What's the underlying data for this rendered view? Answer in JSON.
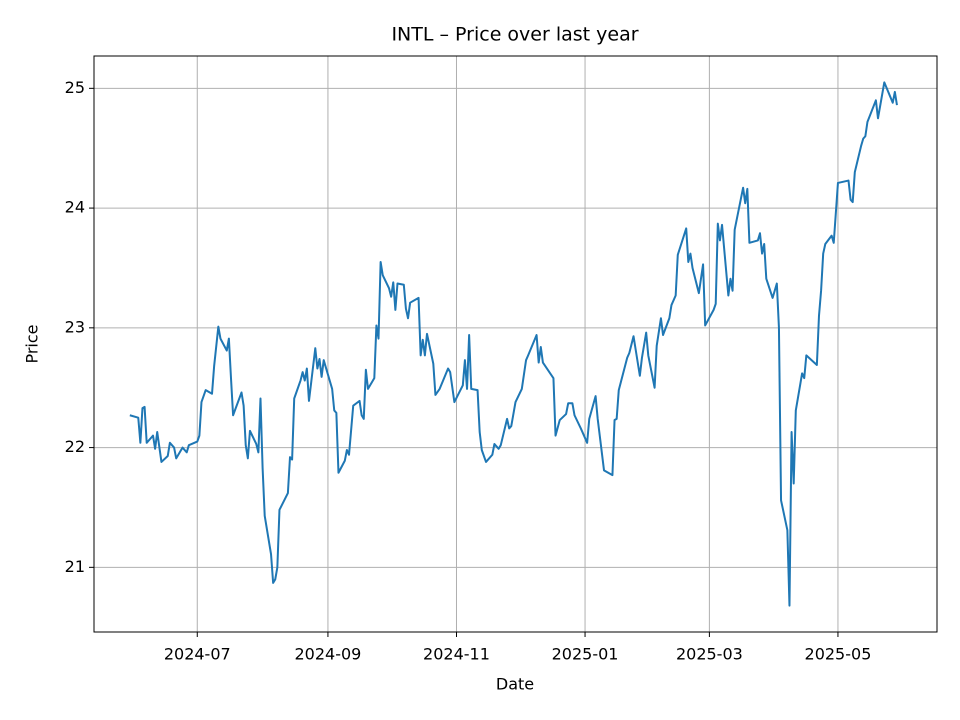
{
  "chart_data": {
    "type": "line",
    "title": "INTL – Price over last year",
    "x_label": "Date",
    "y_label": "Price",
    "color": "#1f77b4",
    "grid": true,
    "xlim": [
      "2024-05-13",
      "2025-06-17"
    ],
    "ylim": [
      20.46,
      25.27
    ],
    "xticks": [
      {
        "value": "2024-07-01",
        "label": "2024-07"
      },
      {
        "value": "2024-09-01",
        "label": "2024-09"
      },
      {
        "value": "2024-11-01",
        "label": "2024-11"
      },
      {
        "value": "2025-01-01",
        "label": "2025-01"
      },
      {
        "value": "2025-03-01",
        "label": "2025-03"
      },
      {
        "value": "2025-05-01",
        "label": "2025-05"
      }
    ],
    "yticks": [
      21,
      22,
      23,
      24,
      25
    ],
    "x": [
      "2024-05-30",
      "2024-06-03",
      "2024-06-04",
      "2024-06-05",
      "2024-06-06",
      "2024-06-07",
      "2024-06-10",
      "2024-06-11",
      "2024-06-12",
      "2024-06-14",
      "2024-06-17",
      "2024-06-18",
      "2024-06-20",
      "2024-06-21",
      "2024-06-24",
      "2024-06-26",
      "2024-06-27",
      "2024-07-01",
      "2024-07-02",
      "2024-07-03",
      "2024-07-05",
      "2024-07-08",
      "2024-07-09",
      "2024-07-11",
      "2024-07-12",
      "2024-07-15",
      "2024-07-16",
      "2024-07-17",
      "2024-07-18",
      "2024-07-22",
      "2024-07-23",
      "2024-07-24",
      "2024-07-25",
      "2024-07-26",
      "2024-07-29",
      "2024-07-30",
      "2024-07-31",
      "2024-08-01",
      "2024-08-02",
      "2024-08-05",
      "2024-08-06",
      "2024-08-07",
      "2024-08-08",
      "2024-08-09",
      "2024-08-13",
      "2024-08-14",
      "2024-08-15",
      "2024-08-16",
      "2024-08-19",
      "2024-08-20",
      "2024-08-21",
      "2024-08-22",
      "2024-08-23",
      "2024-08-26",
      "2024-08-27",
      "2024-08-28",
      "2024-08-29",
      "2024-08-30",
      "2024-09-03",
      "2024-09-04",
      "2024-09-05",
      "2024-09-06",
      "2024-09-09",
      "2024-09-10",
      "2024-09-11",
      "2024-09-13",
      "2024-09-16",
      "2024-09-17",
      "2024-09-18",
      "2024-09-19",
      "2024-09-20",
      "2024-09-23",
      "2024-09-24",
      "2024-09-25",
      "2024-09-26",
      "2024-09-27",
      "2024-09-30",
      "2024-10-01",
      "2024-10-02",
      "2024-10-03",
      "2024-10-04",
      "2024-10-07",
      "2024-10-08",
      "2024-10-09",
      "2024-10-10",
      "2024-10-14",
      "2024-10-15",
      "2024-10-16",
      "2024-10-17",
      "2024-10-18",
      "2024-10-21",
      "2024-10-22",
      "2024-10-24",
      "2024-10-28",
      "2024-10-29",
      "2024-10-31",
      "2024-11-04",
      "2024-11-05",
      "2024-11-06",
      "2024-11-07",
      "2024-11-08",
      "2024-11-11",
      "2024-11-12",
      "2024-11-13",
      "2024-11-15",
      "2024-11-18",
      "2024-11-19",
      "2024-11-21",
      "2024-11-22",
      "2024-11-25",
      "2024-11-26",
      "2024-11-27",
      "2024-11-29",
      "2024-12-02",
      "2024-12-04",
      "2024-12-05",
      "2024-12-09",
      "2024-12-10",
      "2024-12-11",
      "2024-12-12",
      "2024-12-17",
      "2024-12-18",
      "2024-12-20",
      "2024-12-23",
      "2024-12-24",
      "2024-12-26",
      "2024-12-27",
      "2024-12-30",
      "2025-01-02",
      "2025-01-03",
      "2025-01-06",
      "2025-01-07",
      "2025-01-10",
      "2025-01-14",
      "2025-01-15",
      "2025-01-16",
      "2025-01-17",
      "2025-01-21",
      "2025-01-22",
      "2025-01-24",
      "2025-01-27",
      "2025-01-28",
      "2025-01-30",
      "2025-01-31",
      "2025-02-03",
      "2025-02-04",
      "2025-02-06",
      "2025-02-07",
      "2025-02-10",
      "2025-02-11",
      "2025-02-13",
      "2025-02-14",
      "2025-02-18",
      "2025-02-19",
      "2025-02-20",
      "2025-02-21",
      "2025-02-24",
      "2025-02-26",
      "2025-02-27",
      "2025-03-03",
      "2025-03-04",
      "2025-03-05",
      "2025-03-06",
      "2025-03-07",
      "2025-03-10",
      "2025-03-11",
      "2025-03-12",
      "2025-03-13",
      "2025-03-17",
      "2025-03-18",
      "2025-03-19",
      "2025-03-20",
      "2025-03-24",
      "2025-03-25",
      "2025-03-26",
      "2025-03-27",
      "2025-03-28",
      "2025-03-31",
      "2025-04-02",
      "2025-04-03",
      "2025-04-04",
      "2025-04-07",
      "2025-04-08",
      "2025-04-09",
      "2025-04-10",
      "2025-04-11",
      "2025-04-14",
      "2025-04-15",
      "2025-04-16",
      "2025-04-21",
      "2025-04-22",
      "2025-04-23",
      "2025-04-24",
      "2025-04-25",
      "2025-04-28",
      "2025-04-29",
      "2025-05-01",
      "2025-05-06",
      "2025-05-07",
      "2025-05-08",
      "2025-05-09",
      "2025-05-12",
      "2025-05-13",
      "2025-05-14",
      "2025-05-15",
      "2025-05-19",
      "2025-05-20",
      "2025-05-23",
      "2025-05-27",
      "2025-05-28",
      "2025-05-29"
    ],
    "values": [
      22.27,
      22.25,
      22.04,
      22.33,
      22.34,
      22.04,
      22.1,
      21.99,
      22.13,
      21.88,
      21.93,
      22.04,
      22.0,
      21.91,
      22.0,
      21.96,
      22.02,
      22.05,
      22.1,
      22.38,
      22.48,
      22.45,
      22.68,
      23.01,
      22.91,
      22.81,
      22.91,
      22.58,
      22.27,
      22.46,
      22.35,
      22.02,
      21.91,
      22.14,
      22.03,
      21.96,
      22.41,
      21.83,
      21.43,
      21.11,
      20.87,
      20.9,
      21.0,
      21.48,
      21.62,
      21.92,
      21.9,
      22.41,
      22.56,
      22.63,
      22.56,
      22.66,
      22.39,
      22.83,
      22.66,
      22.74,
      22.59,
      22.73,
      22.49,
      22.31,
      22.29,
      21.79,
      21.89,
      21.98,
      21.94,
      22.35,
      22.39,
      22.27,
      22.24,
      22.65,
      22.49,
      22.58,
      23.02,
      22.91,
      23.55,
      23.44,
      23.33,
      23.26,
      23.38,
      23.15,
      23.37,
      23.36,
      23.16,
      23.08,
      23.21,
      23.25,
      22.77,
      22.9,
      22.77,
      22.95,
      22.7,
      22.44,
      22.49,
      22.66,
      22.63,
      22.38,
      22.52,
      22.73,
      22.49,
      22.94,
      22.49,
      22.48,
      22.13,
      21.98,
      21.88,
      21.94,
      22.03,
      21.99,
      22.02,
      22.24,
      22.16,
      22.18,
      22.38,
      22.49,
      22.73,
      22.77,
      22.94,
      22.71,
      22.84,
      22.71,
      22.58,
      22.1,
      22.23,
      22.28,
      22.37,
      22.37,
      22.27,
      22.16,
      22.04,
      22.24,
      22.43,
      22.24,
      21.81,
      21.77,
      22.23,
      22.24,
      22.48,
      22.75,
      22.79,
      22.93,
      22.6,
      22.75,
      22.96,
      22.77,
      22.5,
      22.85,
      23.08,
      22.94,
      23.08,
      23.19,
      23.27,
      23.61,
      23.83,
      23.55,
      23.62,
      23.5,
      23.29,
      23.53,
      23.02,
      23.15,
      23.2,
      23.87,
      23.73,
      23.86,
      23.27,
      23.41,
      23.31,
      23.82,
      24.17,
      24.04,
      24.16,
      23.71,
      23.73,
      23.79,
      23.62,
      23.7,
      23.41,
      23.25,
      23.37,
      23.0,
      21.56,
      21.31,
      20.68,
      22.13,
      21.7,
      22.31,
      22.62,
      22.58,
      22.77,
      22.69,
      23.1,
      23.31,
      23.62,
      23.7,
      23.77,
      23.71,
      24.21,
      24.23,
      24.07,
      24.05,
      24.3,
      24.52,
      24.58,
      24.6,
      24.72,
      24.9,
      24.75,
      25.05,
      24.88,
      24.97,
      24.86
    ]
  }
}
